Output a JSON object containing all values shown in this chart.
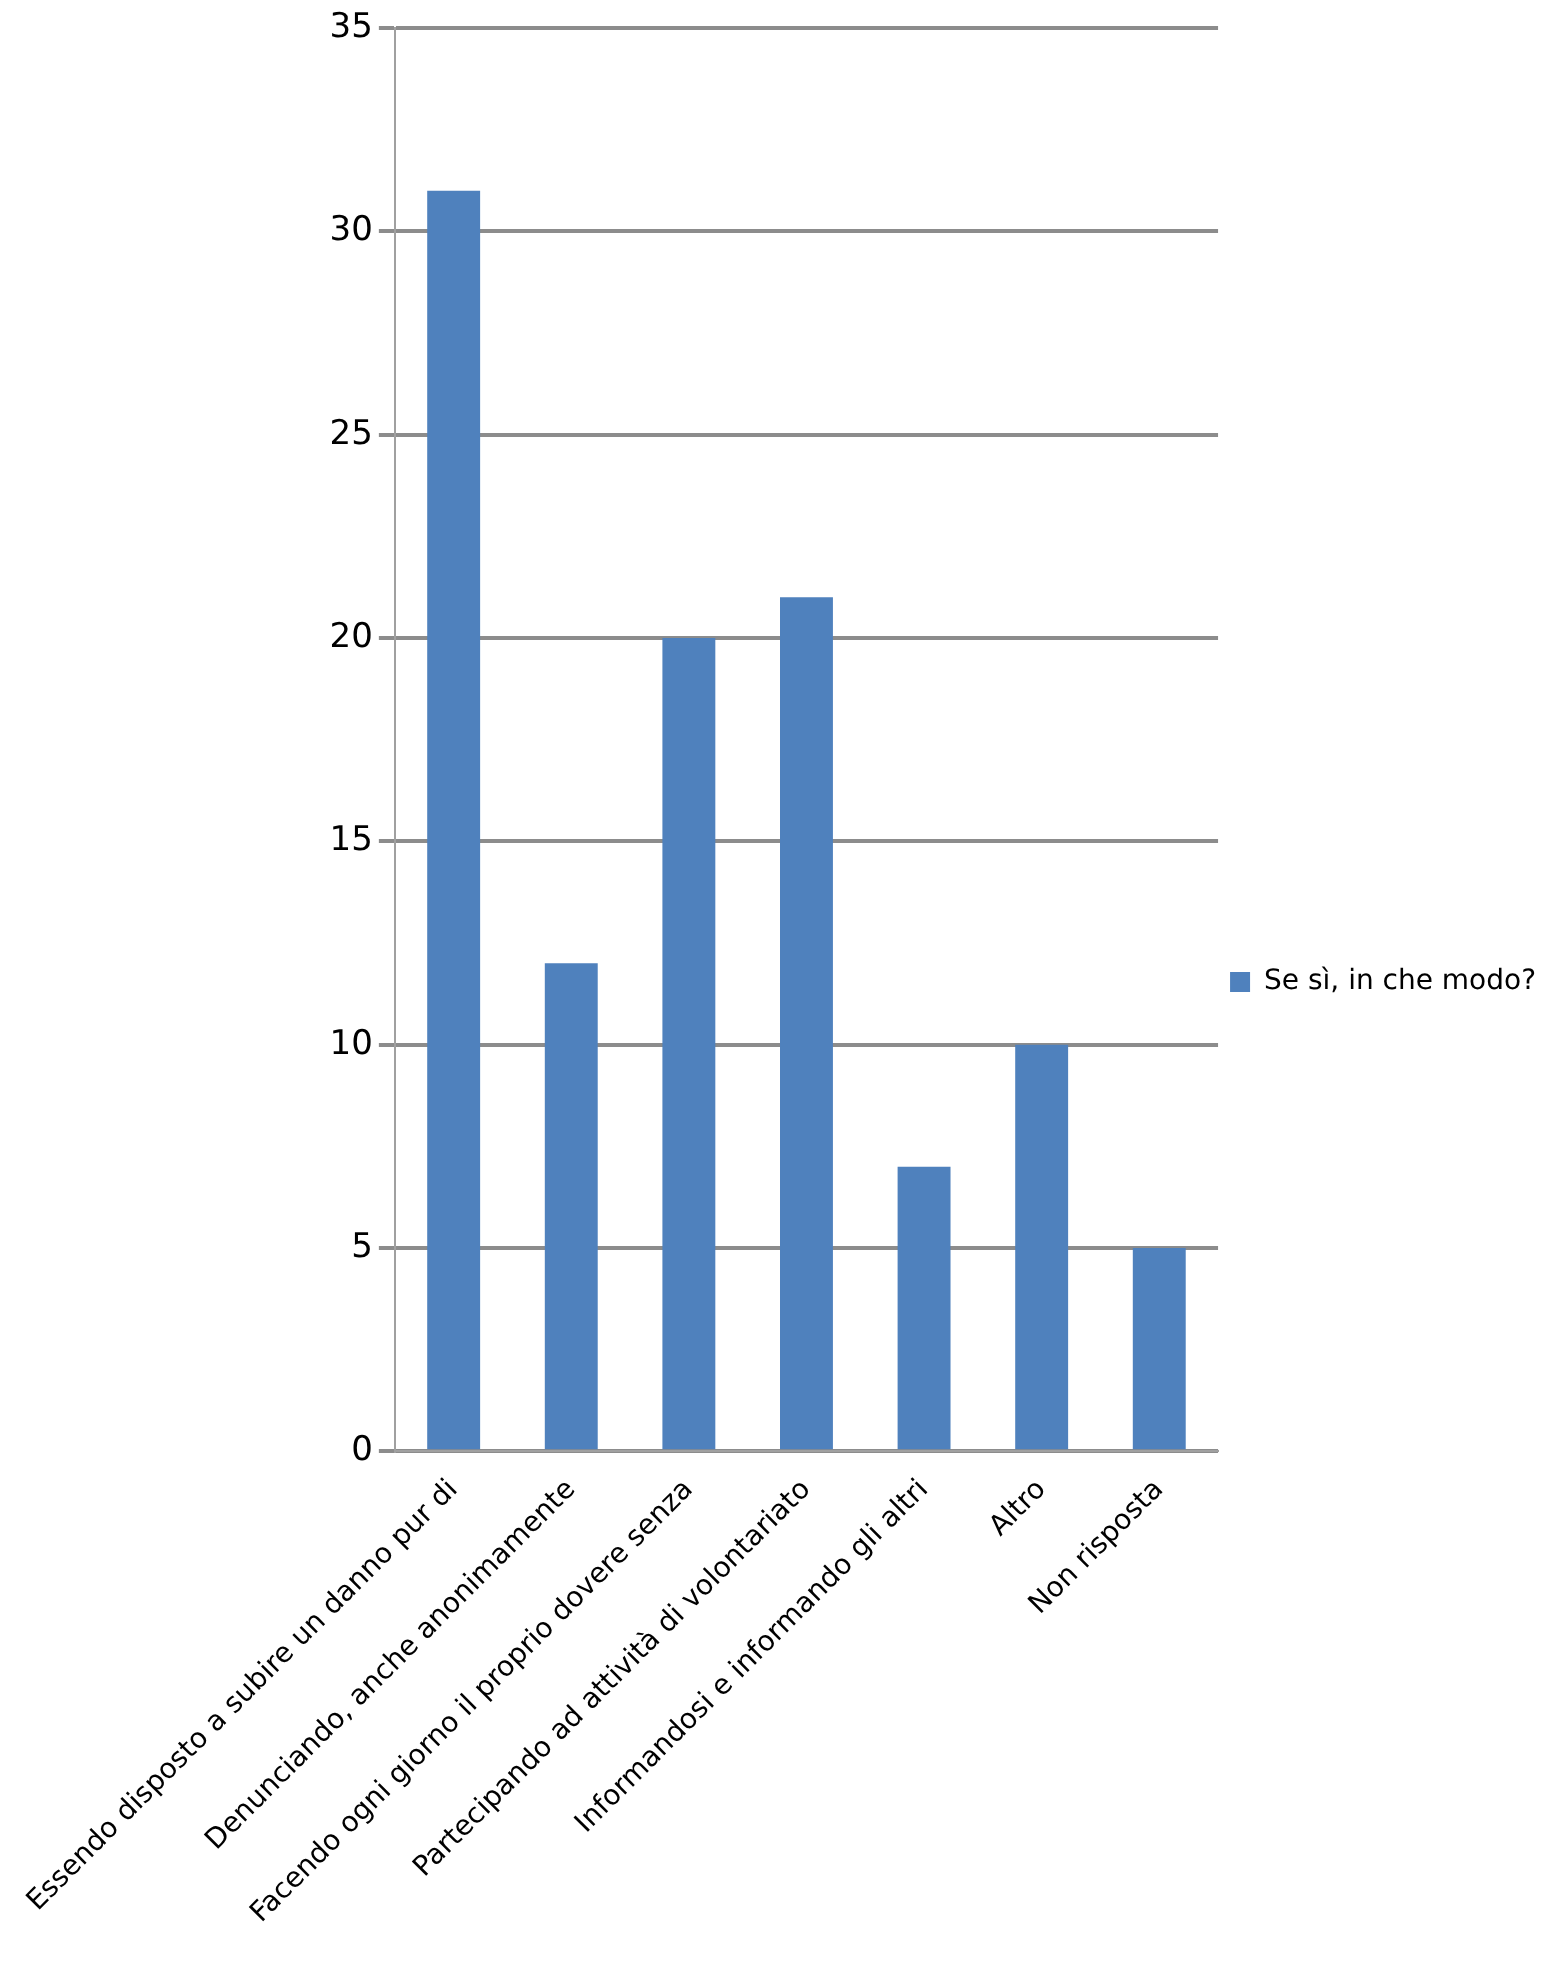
{
  "chart_data": {
    "type": "bar",
    "categories": [
      "Essendo disposto a subire un danno pur di",
      "Denunciando, anche anonimamente",
      "Facendo ogni giorno il proprio dovere senza",
      "Partecipando ad attività di volontariato",
      "Informandosi e informando gli altri",
      "Altro",
      "Non risposta"
    ],
    "series": [
      {
        "name": "Se sì, in che modo?",
        "color": "#4f81bd",
        "values": [
          31,
          12,
          20,
          21,
          7,
          10,
          5
        ]
      }
    ],
    "ylim": [
      0,
      35
    ],
    "yticks": [
      0,
      5,
      10,
      15,
      20,
      25,
      30,
      35
    ],
    "grid": "y",
    "legend": "right"
  }
}
